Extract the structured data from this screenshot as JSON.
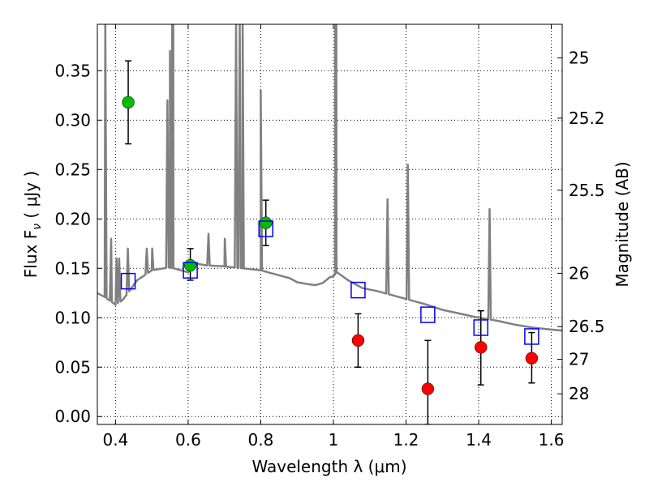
{
  "chart_data": {
    "type": "scatter",
    "xlabel": "Wavelength  λ (μm)",
    "ylabel": "Flux  F",
    "ylabel_sub": "ν",
    "ylabel_rest": "  (  μJy  )",
    "y2label": "Magnitude (AB)",
    "xlim": [
      0.35,
      1.63
    ],
    "ylim": [
      -0.008,
      0.397
    ],
    "x_ticks": [
      0.4,
      0.6,
      0.8,
      1.0,
      1.2,
      1.4,
      1.6
    ],
    "x_tick_labels": [
      "0.4",
      "0.6",
      "0.8",
      "1",
      "1.2",
      "1.4",
      "1.6"
    ],
    "y_ticks": [
      0.0,
      0.05,
      0.1,
      0.15,
      0.2,
      0.25,
      0.3,
      0.35
    ],
    "y_tick_labels": [
      "0.00",
      "0.05",
      "0.10",
      "0.15",
      "0.20",
      "0.25",
      "0.30",
      "0.35"
    ],
    "y2_ticks": [
      {
        "label": "25",
        "flux": 0.363
      },
      {
        "label": "25.2",
        "flux": 0.302
      },
      {
        "label": "25.5",
        "flux": 0.229
      },
      {
        "label": "26",
        "flux": 0.145
      },
      {
        "label": "26.5",
        "flux": 0.091
      },
      {
        "label": "27",
        "flux": 0.058
      },
      {
        "label": "28",
        "flux": 0.023
      }
    ],
    "grid": true,
    "series": [
      {
        "marker": "green-circle",
        "color": "#00bb00",
        "points": [
          {
            "x": 0.435,
            "y": 0.318,
            "err_low": 0.276,
            "err_high": 0.36
          },
          {
            "x": 0.606,
            "y": 0.153,
            "err_low": 0.138,
            "err_high": 0.17
          },
          {
            "x": 0.814,
            "y": 0.196,
            "err_low": 0.173,
            "err_high": 0.219
          }
        ]
      },
      {
        "marker": "red-circle",
        "color": "#ff0000",
        "points": [
          {
            "x": 1.068,
            "y": 0.077,
            "err_low": 0.05,
            "err_high": 0.104
          },
          {
            "x": 1.26,
            "y": 0.028,
            "err_low": -0.008,
            "err_high": 0.077
          },
          {
            "x": 1.406,
            "y": 0.07,
            "err_low": 0.032,
            "err_high": 0.107
          },
          {
            "x": 1.546,
            "y": 0.059,
            "err_low": 0.034,
            "err_high": 0.085
          }
        ]
      },
      {
        "marker": "blue-open-square",
        "color": "#0000ff",
        "points": [
          {
            "x": 0.435,
            "y": 0.137
          },
          {
            "x": 0.606,
            "y": 0.148
          },
          {
            "x": 0.814,
            "y": 0.19
          },
          {
            "x": 1.068,
            "y": 0.128
          },
          {
            "x": 1.26,
            "y": 0.103
          },
          {
            "x": 1.406,
            "y": 0.09
          },
          {
            "x": 1.546,
            "y": 0.081
          }
        ]
      },
      {
        "type": "line",
        "color": "#808080",
        "continuum": [
          [
            0.35,
            0.125
          ],
          [
            0.37,
            0.121
          ],
          [
            0.39,
            0.116
          ],
          [
            0.4,
            0.113
          ],
          [
            0.42,
            0.118
          ],
          [
            0.44,
            0.128
          ],
          [
            0.46,
            0.138
          ],
          [
            0.5,
            0.148
          ],
          [
            0.55,
            0.151
          ],
          [
            0.6,
            0.146
          ],
          [
            0.62,
            0.155
          ],
          [
            0.65,
            0.153
          ],
          [
            0.7,
            0.152
          ],
          [
            0.75,
            0.15
          ],
          [
            0.8,
            0.148
          ],
          [
            0.82,
            0.146
          ],
          [
            0.85,
            0.143
          ],
          [
            0.88,
            0.14
          ],
          [
            0.9,
            0.136
          ],
          [
            0.93,
            0.134
          ],
          [
            0.95,
            0.133
          ],
          [
            0.97,
            0.135
          ],
          [
            0.99,
            0.141
          ],
          [
            1.0,
            0.142
          ],
          [
            1.01,
            0.146
          ],
          [
            1.04,
            0.138
          ],
          [
            1.08,
            0.13
          ],
          [
            1.12,
            0.127
          ],
          [
            1.16,
            0.123
          ],
          [
            1.2,
            0.119
          ],
          [
            1.25,
            0.114
          ],
          [
            1.3,
            0.108
          ],
          [
            1.35,
            0.104
          ],
          [
            1.4,
            0.1
          ],
          [
            1.45,
            0.097
          ],
          [
            1.5,
            0.093
          ],
          [
            1.55,
            0.09
          ],
          [
            1.6,
            0.088
          ],
          [
            1.63,
            0.087
          ]
        ],
        "emission_lines": [
          [
            0.372,
            0.4
          ],
          [
            0.388,
            0.18
          ],
          [
            0.403,
            0.16
          ],
          [
            0.41,
            0.16
          ],
          [
            0.434,
            0.17
          ],
          [
            0.486,
            0.17
          ],
          [
            0.501,
            0.17
          ],
          [
            0.543,
            0.32
          ],
          [
            0.55,
            0.37
          ],
          [
            0.556,
            0.4
          ],
          [
            0.559,
            0.4
          ],
          [
            0.656,
            0.185
          ],
          [
            0.701,
            0.18
          ],
          [
            0.732,
            0.4
          ],
          [
            0.742,
            0.4
          ],
          [
            0.75,
            0.4
          ],
          [
            0.8,
            0.33
          ],
          [
            1.005,
            0.4
          ],
          [
            1.008,
            0.4
          ],
          [
            1.149,
            0.22
          ],
          [
            1.205,
            0.255
          ],
          [
            1.43,
            0.21
          ]
        ]
      }
    ]
  }
}
